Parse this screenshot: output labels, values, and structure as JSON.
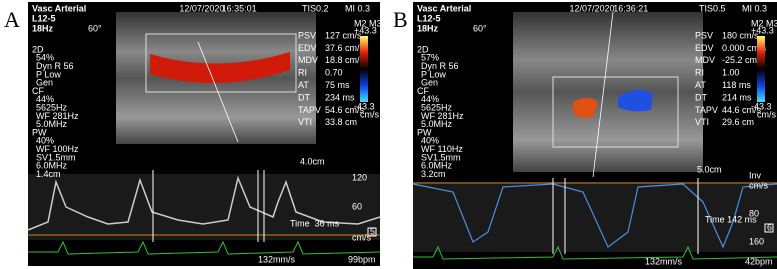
{
  "panels": [
    {
      "label": "A",
      "header": {
        "title": "Vasc Arterial",
        "probe": "L12-5",
        "rate": "18Hz",
        "angle": "60°",
        "date": "12/07/2020",
        "time": "16:35:01",
        "tis": "TIS0.2",
        "mi": "MI 0.3"
      },
      "settings": [
        "2D",
        "54%",
        "Dyn R 56",
        "P Low",
        "Gen",
        "CF",
        "44%",
        "5625Hz",
        "WF 281Hz",
        "5.0MHz",
        "PW",
        "40%",
        "WF 100Hz",
        "SV1.5mm",
        "6.0MHz",
        "1.4cm"
      ],
      "measurements": [
        [
          "PSV",
          "127 cm/s"
        ],
        [
          "EDV",
          "37.6 cm/s"
        ],
        [
          "MDV",
          "18.8 cm/s"
        ],
        [
          "RI",
          "0.70"
        ],
        [
          "AT",
          "75 ms"
        ],
        [
          "DT",
          "234 ms"
        ],
        [
          "TAPV",
          "54.6 cm/s"
        ],
        [
          "VTI",
          "33.8 cm"
        ]
      ],
      "colorbar": {
        "mode": "M2 M3",
        "top": "+43.3",
        "bottom": "-43.3",
        "unit": "cm/s"
      },
      "depth": "4.0cm",
      "scale": [
        "120",
        "60",
        "cm/s"
      ],
      "time_label": "Time  36 ms",
      "marker": "5",
      "sweep": "132mm/s",
      "heart_rate": "99bpm"
    },
    {
      "label": "B",
      "header": {
        "title": "Vasc Arterial",
        "probe": "L12-5",
        "rate": "18Hz",
        "angle": "60°",
        "date": "12/07/2020",
        "time": "16:36:21",
        "tis": "TIS0.5",
        "mi": "MI 0.3"
      },
      "settings": [
        "2D",
        "57%",
        "Dyn R 56",
        "P Low",
        "Gen",
        "CF",
        "44%",
        "5625Hz",
        "WF 281Hz",
        "5.0MHz",
        "PW",
        "40%",
        "WF 110Hz",
        "SV1.5mm",
        "6.0MHz",
        "3.2cm"
      ],
      "measurements": [
        [
          "PSV",
          "180 cm/s"
        ],
        [
          "EDV",
          "0.000 cm/s"
        ],
        [
          "MDV",
          "-25.2 cm/s"
        ],
        [
          "RI",
          "1.00"
        ],
        [
          "AT",
          "118 ms"
        ],
        [
          "DT",
          "214 ms"
        ],
        [
          "TAPV",
          "44.6 cm/s"
        ],
        [
          "VTI",
          "29.6 cm"
        ]
      ],
      "colorbar": {
        "mode": "M2 M3",
        "top": "+43.3",
        "bottom": "-43.3",
        "unit": "cm/s"
      },
      "depth": "5.0cm",
      "scale": [
        "Inv",
        "cm/s",
        "80",
        "160"
      ],
      "time_label": "Time 142 ms",
      "marker": "6",
      "sweep": "132mm/s",
      "heart_rate": "42bpm"
    }
  ]
}
